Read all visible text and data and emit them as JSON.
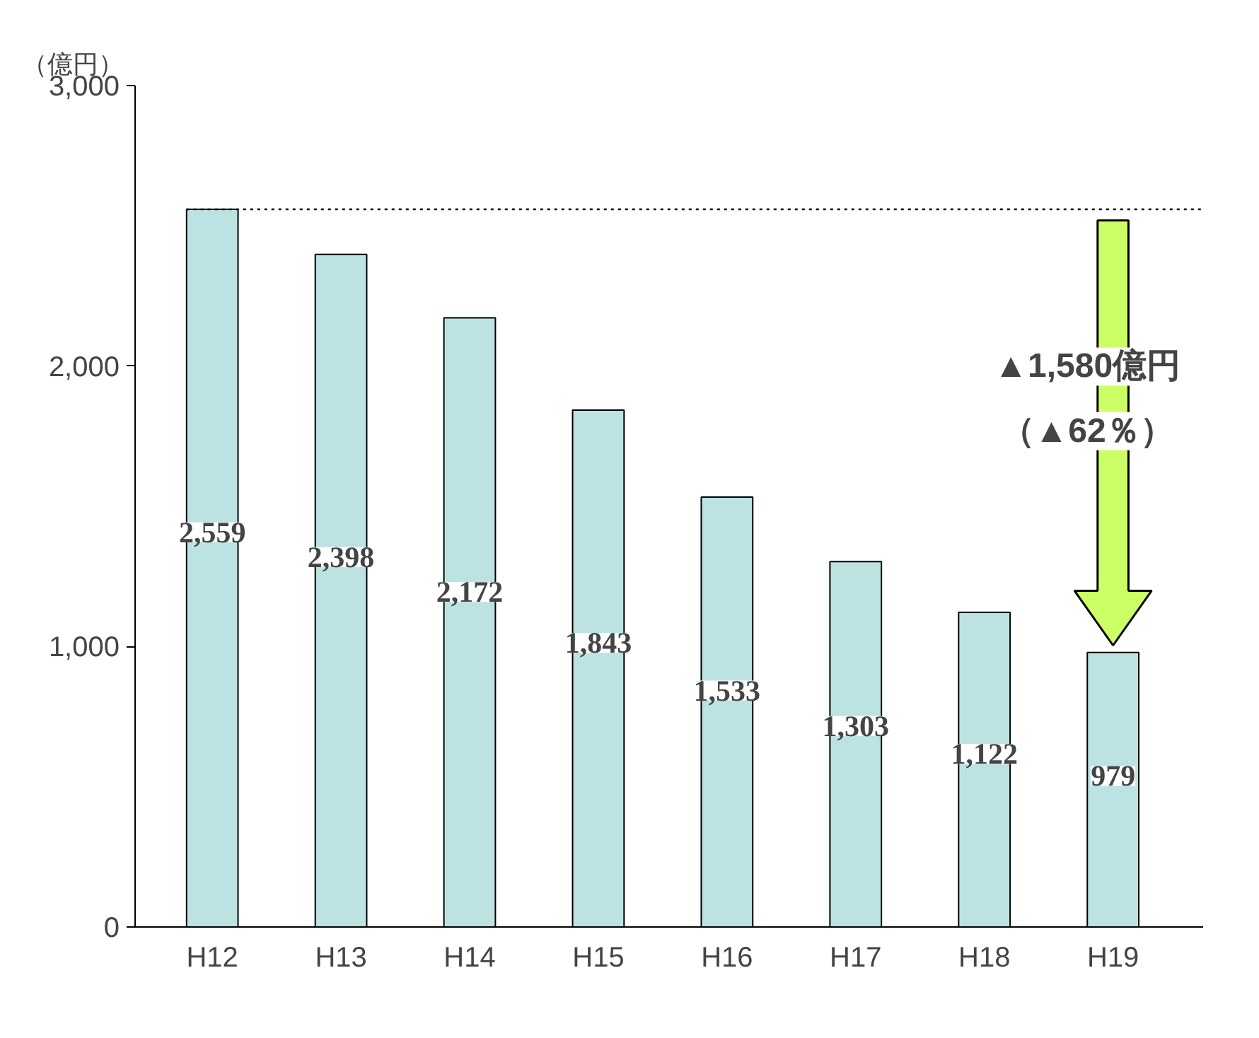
{
  "chart_data": {
    "type": "bar",
    "ylabel": "（億円）",
    "categories": [
      "H12",
      "H13",
      "H14",
      "H15",
      "H16",
      "H17",
      "H18",
      "H19"
    ],
    "values": [
      2559,
      2398,
      2172,
      1843,
      1533,
      1303,
      1122,
      979
    ],
    "color": "#bde2e2",
    "ylim": [
      0,
      3000
    ],
    "yticks": [
      {
        "value": 0,
        "label": "0"
      },
      {
        "value": 1000,
        "label": "1,000"
      },
      {
        "value": 2000,
        "label": "2,000"
      },
      {
        "value": 3000,
        "label": "3,000"
      }
    ],
    "value_labels": [
      "2,559",
      "2,398",
      "2,172",
      "1,843",
      "1,533",
      "1,303",
      "1,122",
      "979"
    ],
    "grid": false,
    "ref_lines": [
      {
        "axis": "y",
        "value": 2559,
        "line_style": "dotted",
        "color": "#000000"
      }
    ],
    "annotations": [
      "▲1,580億円",
      "（▲62％）"
    ]
  }
}
